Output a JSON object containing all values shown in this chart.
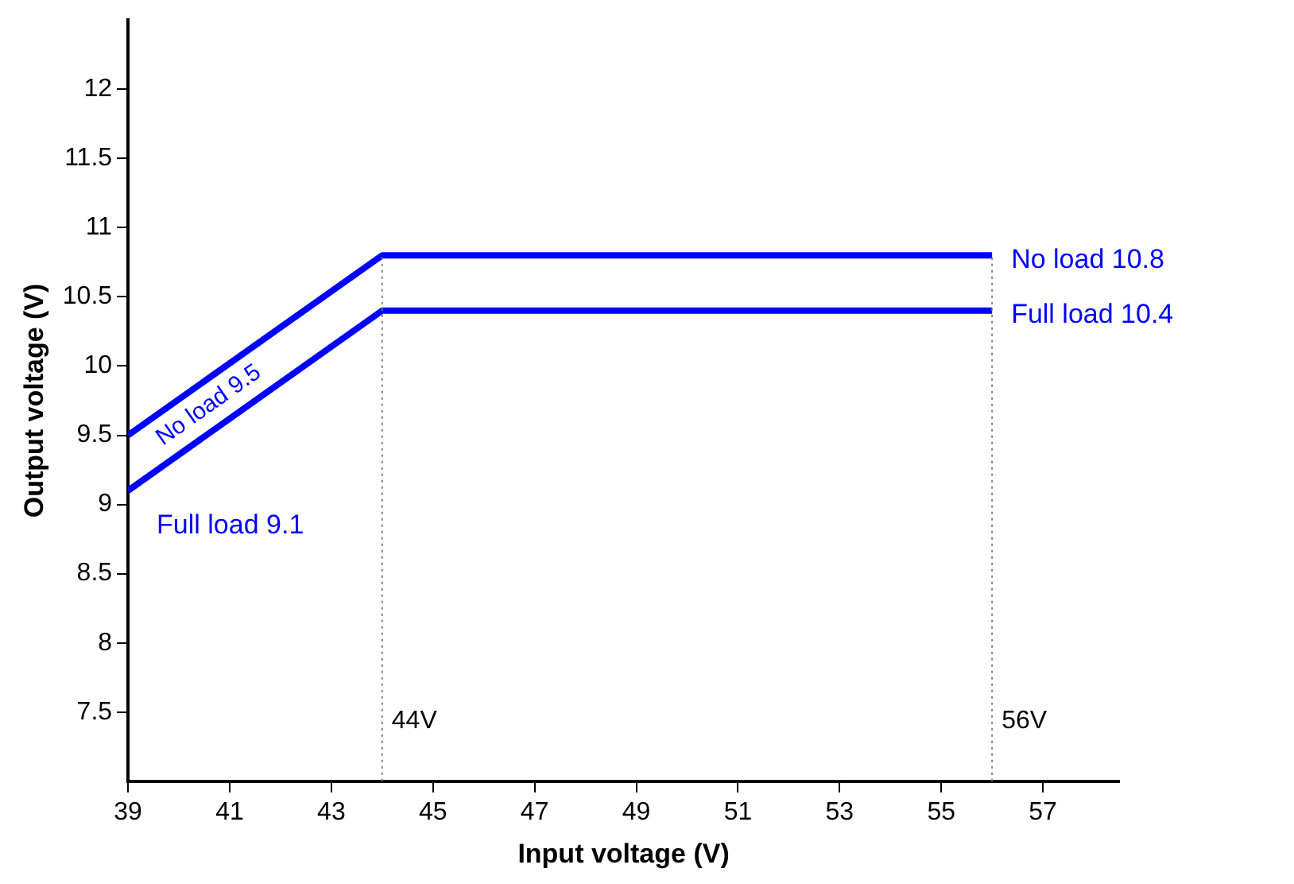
{
  "chart_data": {
    "type": "line",
    "xlabel": "Input voltage (V)",
    "ylabel": "Output voltage (V)",
    "xlim": [
      39,
      58.5
    ],
    "xticks": [
      39,
      41,
      43,
      45,
      47,
      49,
      51,
      53,
      55,
      57
    ],
    "ylim": [
      7,
      12.5
    ],
    "yticks": [
      7.5,
      8,
      8.5,
      9,
      9.5,
      10,
      10.5,
      11,
      11.5,
      12
    ],
    "grid": false,
    "legend": false,
    "marker": "none",
    "line_style": "solid",
    "series": [
      {
        "x": [
          39,
          44,
          56
        ],
        "values": [
          9.5,
          10.8,
          10.8
        ],
        "color": "#0000ff",
        "value_labels": [
          "No load 9.5",
          null,
          "No load 10.8"
        ]
      },
      {
        "x": [
          39,
          44,
          56
        ],
        "values": [
          9.1,
          10.4,
          10.4
        ],
        "color": "#0000ff",
        "value_labels": [
          "Full load 9.1",
          null,
          "Full load 10.4"
        ]
      }
    ],
    "ref_lines": [
      {
        "axis": "x",
        "value": 44,
        "label": "44V",
        "color": "#808080",
        "line_style": "dotted"
      },
      {
        "axis": "x",
        "value": 56,
        "label": "56V",
        "color": "#808080",
        "line_style": "dotted"
      }
    ]
  }
}
